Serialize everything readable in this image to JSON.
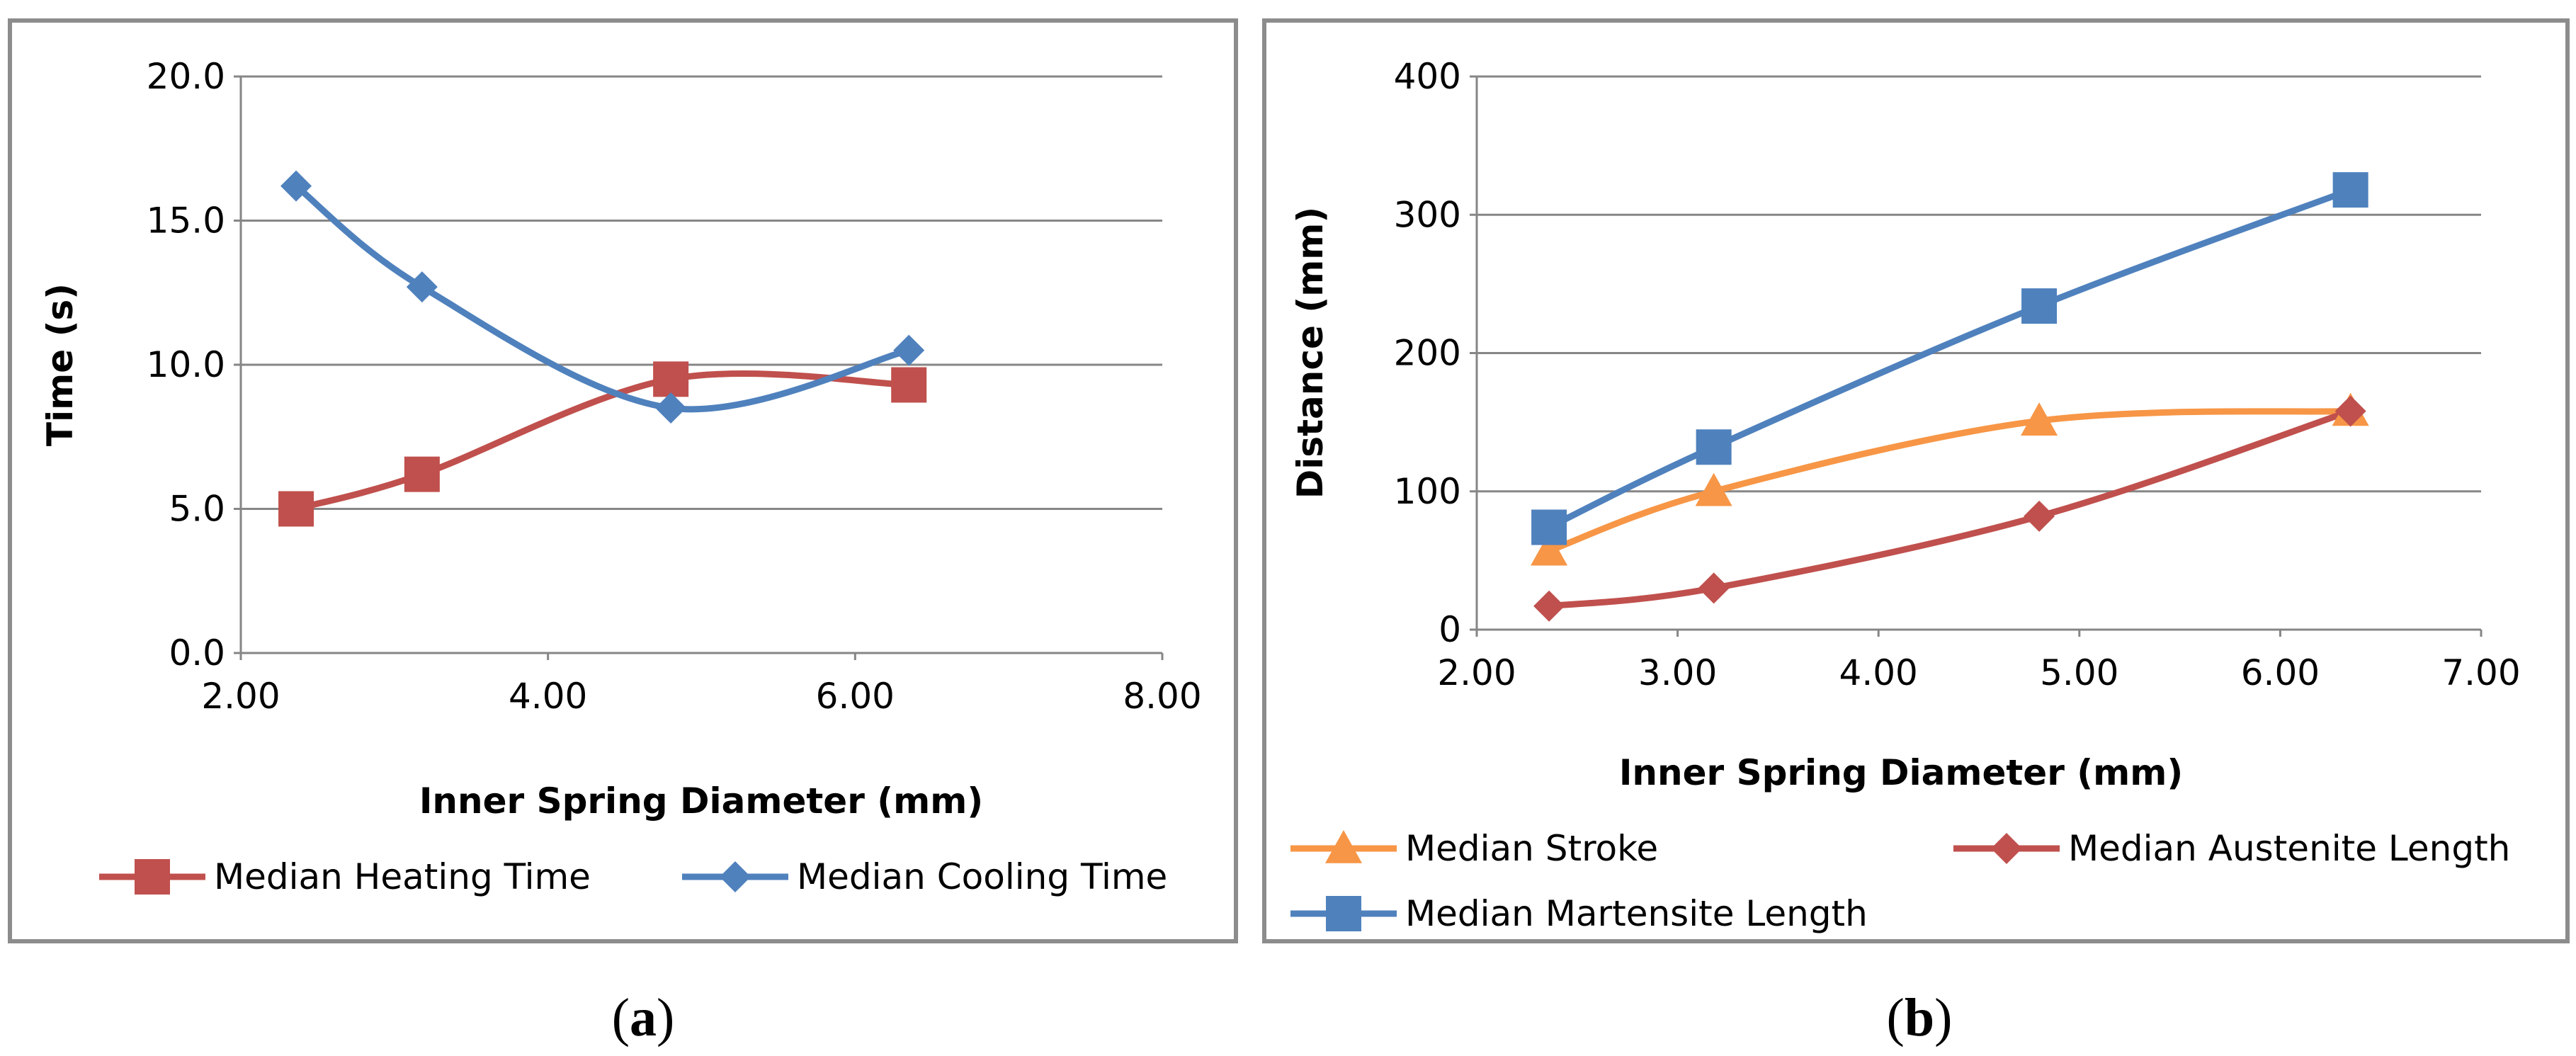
{
  "chart_data": [
    {
      "type": "line",
      "panel_label": "a",
      "xlabel": "Inner Spring Diameter (mm)",
      "ylabel": "Time (s)",
      "xlim": [
        2.0,
        8.0
      ],
      "ylim": [
        0.0,
        20.0
      ],
      "x_ticks": [
        2.0,
        4.0,
        6.0,
        8.0
      ],
      "x_tick_labels": [
        "2.00",
        "4.00",
        "6.00",
        "8.00"
      ],
      "y_ticks": [
        0,
        5,
        10,
        15,
        20
      ],
      "y_tick_labels": [
        "0.0",
        "5.0",
        "10.0",
        "15.0",
        "20.0"
      ],
      "grid": "horizontal",
      "smooth": true,
      "legend": "bottom",
      "series": [
        {
          "name": "Median Heating Time",
          "color": "#c0504d",
          "marker": "square",
          "x": [
            2.36,
            3.18,
            4.8,
            6.35
          ],
          "y": [
            5.0,
            6.2,
            9.5,
            9.3
          ]
        },
        {
          "name": "Median Cooling Time",
          "color": "#4f81bd",
          "marker": "diamond",
          "x": [
            2.36,
            3.18,
            4.8,
            6.35
          ],
          "y": [
            16.2,
            12.7,
            8.5,
            10.5
          ]
        }
      ]
    },
    {
      "type": "line",
      "panel_label": "b",
      "xlabel": "Inner Spring Diameter (mm)",
      "ylabel": "Distance (mm)",
      "xlim": [
        2.0,
        7.0
      ],
      "ylim": [
        0,
        400
      ],
      "x_ticks": [
        2,
        3,
        4,
        5,
        6,
        7
      ],
      "x_tick_labels": [
        "2.00",
        "3.00",
        "4.00",
        "5.00",
        "6.00",
        "7.00"
      ],
      "y_ticks": [
        0,
        100,
        200,
        300,
        400
      ],
      "y_tick_labels": [
        "0",
        "100",
        "200",
        "300",
        "400"
      ],
      "grid": "horizontal",
      "smooth": true,
      "legend": "bottom",
      "series": [
        {
          "name": "Median Stroke",
          "color": "#f79646",
          "marker": "triangle",
          "x": [
            2.36,
            3.18,
            4.8,
            6.35
          ],
          "y": [
            57,
            100,
            151,
            158
          ]
        },
        {
          "name": "Median Austenite Length",
          "color": "#c0504d",
          "marker": "diamond",
          "x": [
            2.36,
            3.18,
            4.8,
            6.35
          ],
          "y": [
            17,
            30,
            82,
            158
          ]
        },
        {
          "name": "Median Martensite Length",
          "color": "#4f81bd",
          "marker": "square",
          "x": [
            2.36,
            3.18,
            4.8,
            6.35
          ],
          "y": [
            74,
            132,
            234,
            318
          ]
        }
      ]
    }
  ]
}
